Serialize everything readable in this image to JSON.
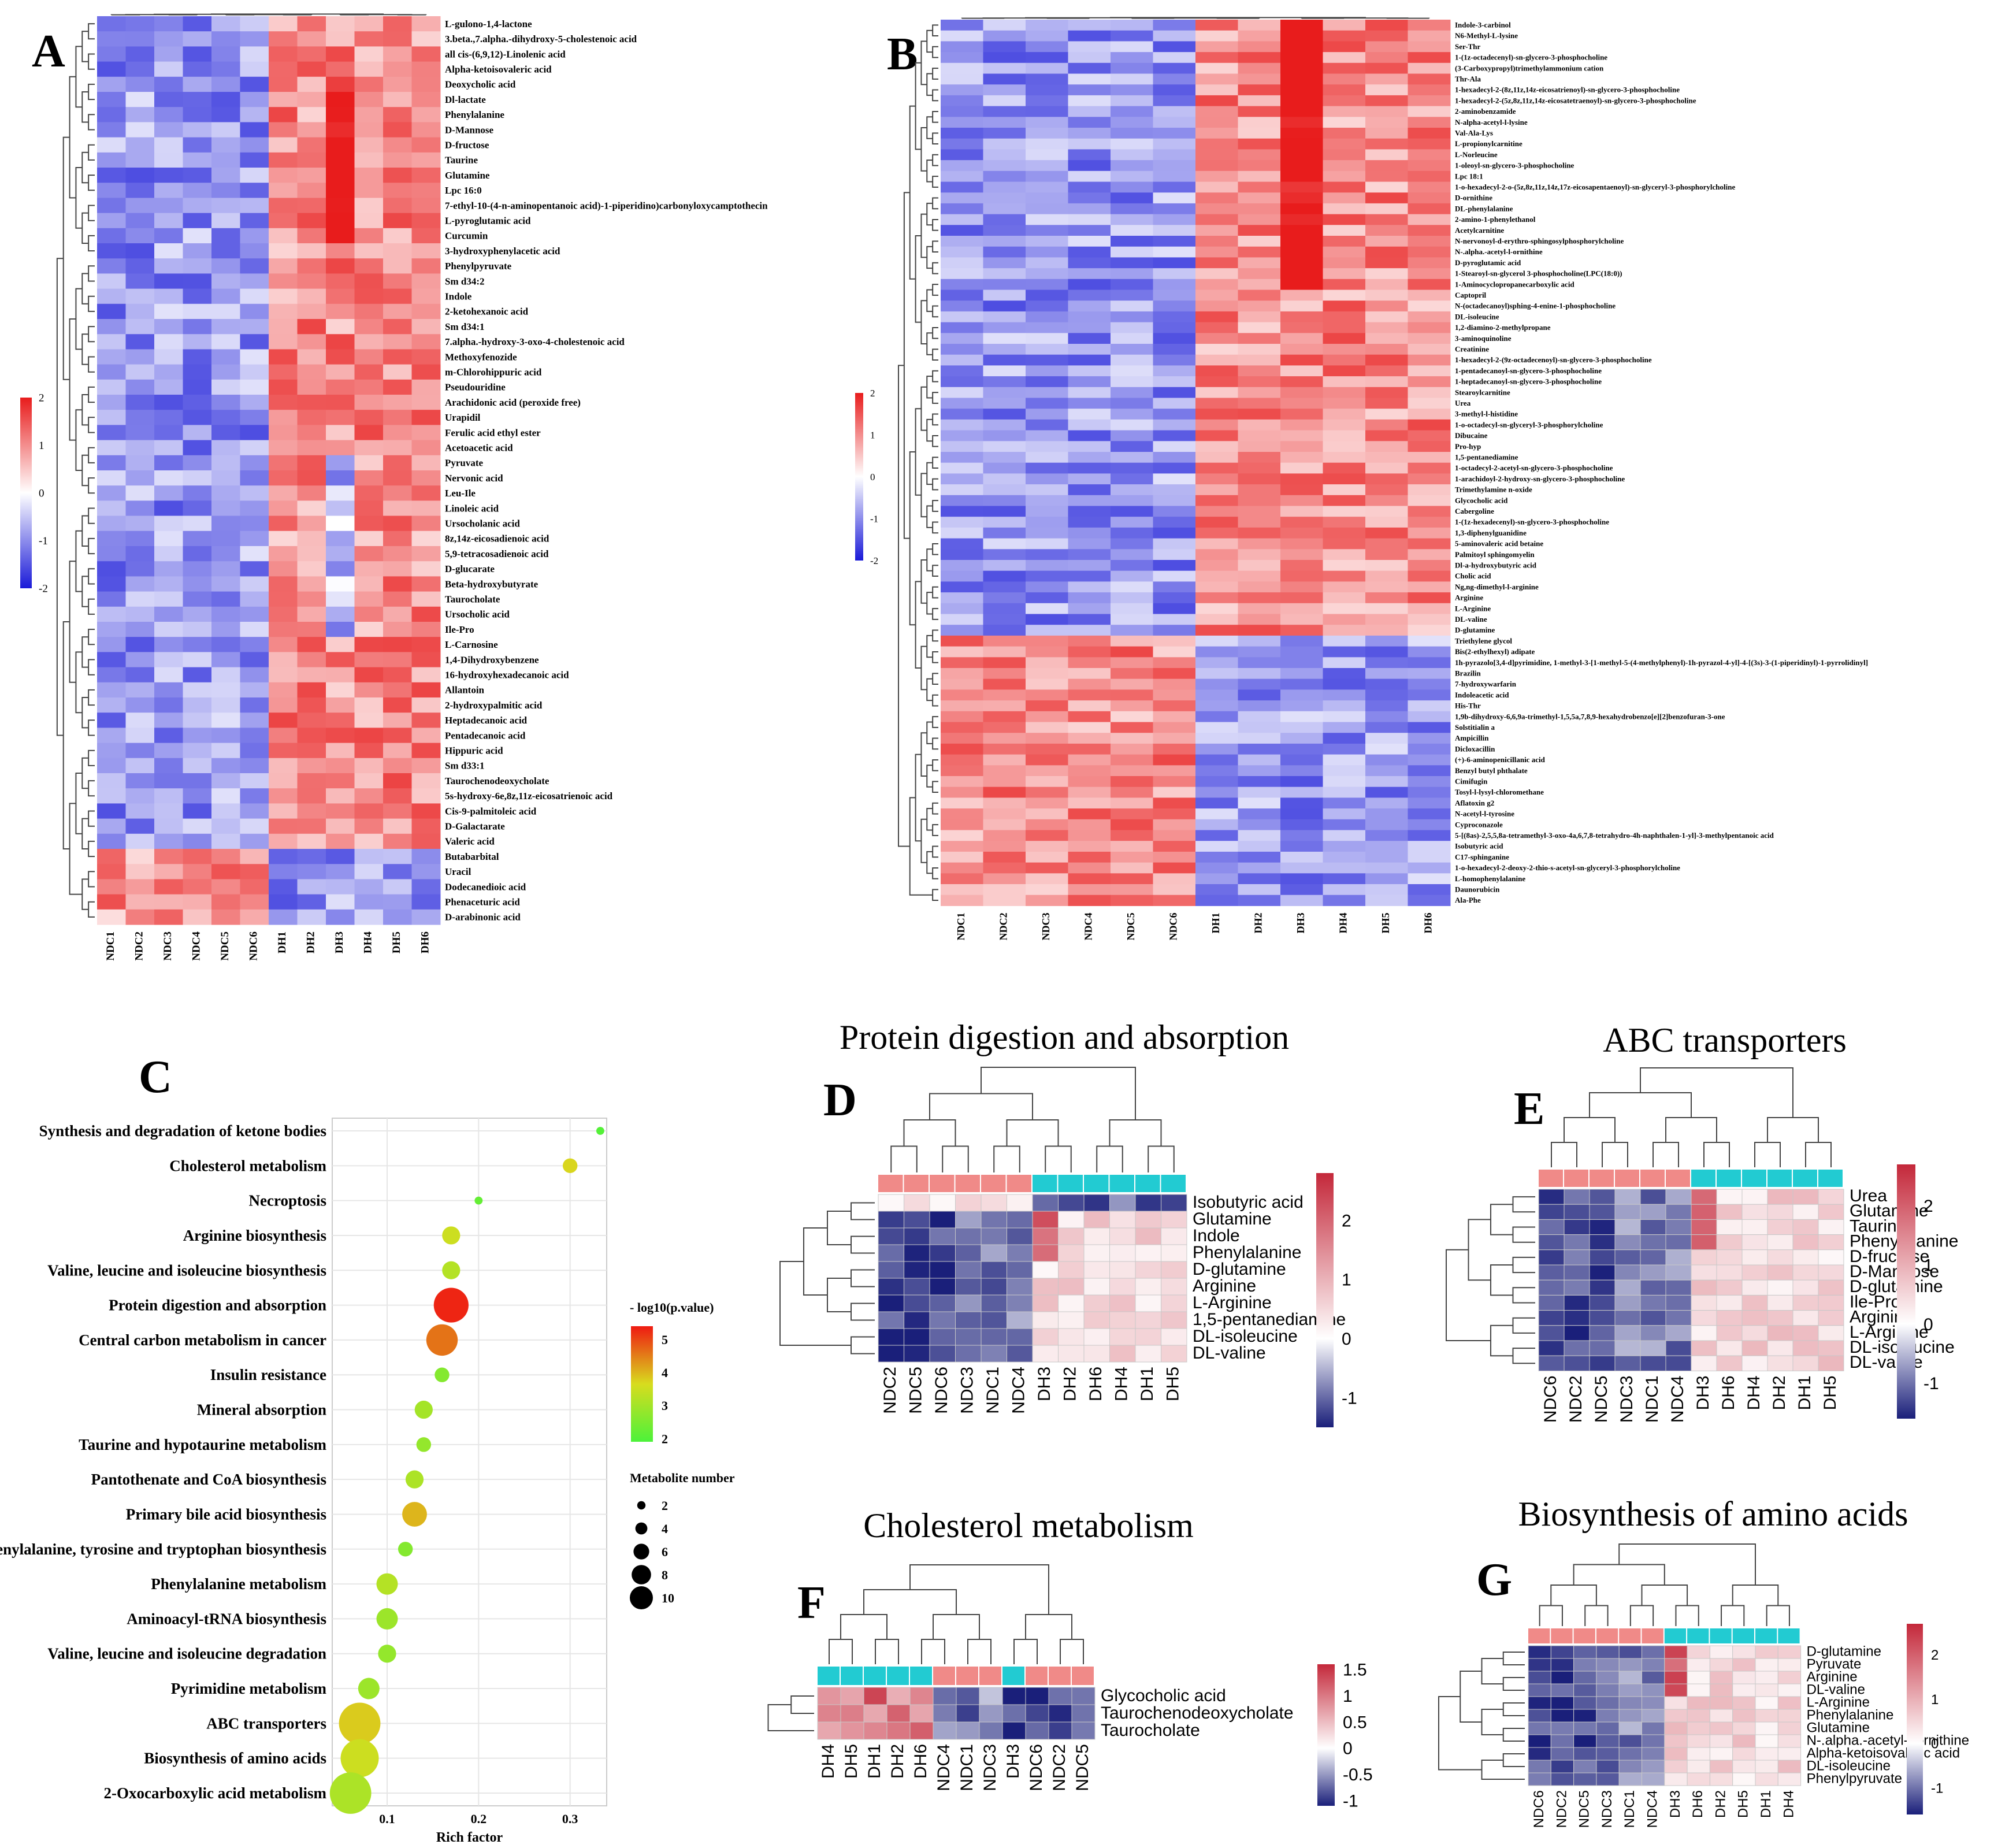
{
  "panels": {
    "A": {
      "letter": "A"
    },
    "B": {
      "letter": "B"
    },
    "C": {
      "letter": "C"
    },
    "D": {
      "letter": "D",
      "title": "Protein digestion and absorption"
    },
    "E": {
      "letter": "E",
      "title": "ABC transporters"
    },
    "F": {
      "letter": "F",
      "title": "Cholesterol metabolism"
    },
    "G": {
      "letter": "G",
      "title": "Biosynthesis of amino acids"
    }
  },
  "colors": {
    "high": "#e81c1c",
    "mid": "#ffffff",
    "low": "#1a1ad8",
    "small_low": "#1a1f7a",
    "small_high": "#c4283a",
    "group_ndc": "#f08a88",
    "group_dh": "#22cbd2",
    "grid": "#e6e6e6"
  },
  "chart_data": [
    {
      "id": "A",
      "type": "heatmap",
      "columns": [
        "NDC1",
        "NDC2",
        "NDC3",
        "NDC4",
        "NDC5",
        "NDC6",
        "DH1",
        "DH2",
        "DH3",
        "DH4",
        "DH5",
        "DH6"
      ],
      "rows": [
        "L-gulono-1,4-lactone",
        "3.beta.,7.alpha.-dihydroxy-5-cholestenoic acid",
        "all cis-(6,9,12)-Linolenic acid",
        "Alpha-ketoisovaleric acid",
        "Deoxycholic acid",
        "Dl-lactate",
        "Phenylalanine",
        "D-Mannose",
        "D-fructose",
        "Taurine",
        "Glutamine",
        "Lpc 16:0",
        "7-ethyl-10-(4-n-aminopentanoic acid)-1-piperidino)carbonyloxycamptothecin",
        "L-pyroglutamic acid",
        "Curcumin",
        "3-hydroxyphenylacetic acid",
        "Phenylpyruvate",
        "Sm d34:2",
        "Indole",
        "2-ketohexanoic acid",
        "Sm d34:1",
        "7.alpha.-hydroxy-3-oxo-4-cholestenoic acid",
        "Methoxyfenozide",
        "m-Chlorohippuric acid",
        "Pseudouridine",
        "Arachidonic acid (peroxide free)",
        "Urapidil",
        "Ferulic acid ethyl ester",
        "Acetoacetic acid",
        "Pyruvate",
        "Nervonic acid",
        "Leu-Ile",
        "Linoleic acid",
        "Ursocholanic acid",
        "8z,14z-eicosadienoic acid",
        "5,9-tetracosadienoic acid",
        "D-glucarate",
        "Beta-hydroxybutyrate",
        "Taurocholate",
        "Ursocholic acid",
        "Ile-Pro",
        "L-Carnosine",
        "1,4-Dihydroxybenzene",
        "16-hydroxyhexadecanoic acid",
        "Allantoin",
        "2-hydroxypalmitic acid",
        "Heptadecanoic acid",
        "Pentadecanoic acid",
        "Hippuric acid",
        "Sm d33:1",
        "Taurochenodeoxycholate",
        "5s-hydroxy-6e,8z,11z-eicosatrienoic acid",
        "Cis-9-palmitoleic acid",
        "D-Galactarate",
        "Valeric acid",
        "Butabarbital",
        "Uracil",
        "Dodecanedioic acid",
        "Phenaceturic acid",
        "D-arabinonic acid"
      ],
      "scale": {
        "min": -2,
        "max": 2,
        "ticks": [
          "2",
          "1",
          "0",
          "-1",
          "-2"
        ]
      }
    },
    {
      "id": "B",
      "type": "heatmap",
      "columns": [
        "NDC1",
        "NDC2",
        "NDC3",
        "NDC4",
        "NDC5",
        "NDC6",
        "DH1",
        "DH2",
        "DH3",
        "DH4",
        "DH5",
        "DH6"
      ],
      "rows": [
        "Indole-3-carbinol",
        "N6-Methyl-L-lysine",
        "Ser-Thr",
        "1-(1z-octadecenyl)-sn-glycero-3-phosphocholine",
        "(3-Carboxypropyl)trimethylammonium cation",
        "Thr-Ala",
        "1-hexadecyl-2-(8z,11z,14z-eicosatrienoyl)-sn-glycero-3-phosphocholine",
        "1-hexadecyl-2-(5z,8z,11z,14z-eicosatetraenoyl)-sn-glycero-3-phosphocholine",
        "2-aminobenzamide",
        "N-alpha-acetyl-l-lysine",
        "Val-Ala-Lys",
        "L-propionylcarnitine",
        "L-Norleucine",
        "1-oleoyl-sn-glycero-3-phosphocholine",
        "Lpc 18:1",
        "1-o-hexadecyl-2-o-(5z,8z,11z,14z,17z-eicosapentaenoyl)-sn-glyceryl-3-phosphorylcholine",
        "D-ornithine",
        "DL-phenylalanine",
        "2-amino-1-phenylethanol",
        "Acetylcarnitine",
        "N-nervonoyl-d-erythro-sphingosylphosphorylcholine",
        "N-.alpha.-acetyl-l-ornithine",
        "D-pyroglutamic acid",
        "1-Stearoyl-sn-glycerol 3-phosphocholine(LPC(18:0))",
        "1-Aminocyclopropanecarboxylic acid",
        "Captopril",
        "N-(octadecanoyl)sphing-4-enine-1-phosphocholine",
        "DL-isoleucine",
        "1,2-diamino-2-methylpropane",
        "3-aminoquinoline",
        "Creatinine",
        "1-hexadecyl-2-(9z-octadecenoyl)-sn-glycero-3-phosphocholine",
        "1-pentadecanoyl-sn-glycero-3-phosphocholine",
        "1-heptadecanoyl-sn-glycero-3-phosphocholine",
        "Stearoylcarnitine",
        "Urea",
        "3-methyl-l-histidine",
        "1-o-octadecyl-sn-glyceryl-3-phosphorylcholine",
        "Dibucaine",
        "Pro-hyp",
        "1,5-pentanediamine",
        "1-octadecyl-2-acetyl-sn-glycero-3-phosphocholine",
        "1-arachidoyl-2-hydroxy-sn-glycero-3-phosphocholine",
        "Trimethylamine n-oxide",
        "Glycocholic acid",
        "Cabergoline",
        "1-(1z-hexadecenyl)-sn-glycero-3-phosphocholine",
        "1,3-diphenylguanidine",
        "5-aminovaleric acid betaine",
        "Palmitoyl sphingomyelin",
        "Dl-a-hydroxybutyric acid",
        "Cholic acid",
        "Ng,ng-dimethyl-l-arginine",
        "Arginine",
        "L-Arginine",
        "DL-valine",
        "D-glutamine",
        "Triethylene glycol",
        "Bis(2-ethylhexyl) adipate",
        "1h-pyrazolo[3,4-d]pyrimidine, 1-methyl-3-[1-methyl-5-(4-methylphenyl)-1h-pyrazol-4-yl]-4-[(3s)-3-(1-piperidinyl)-1-pyrrolidinyl]",
        "Brazilin",
        "7-hydroxywarfarin",
        "Indoleacetic acid",
        "His-Thr",
        "1,9b-dihydroxy-6,6,9a-trimethyl-1,5,5a,7,8,9-hexahydrobenzo[e][2]benzofuran-3-one",
        "Solstitialin a",
        "Ampicillin",
        "Dicloxacillin",
        "(+)-6-aminopenicillanic acid",
        "Benzyl butyl phthalate",
        "Cimifugin",
        "Tosyl-l-lysyl-chloromethane",
        "Aflatoxin g2",
        "N-acetyl-l-tyrosine",
        "Cyproconazole",
        "5-[(8as)-2,5,5,8a-tetramethyl-3-oxo-4a,6,7,8-tetrahydro-4h-naphthalen-1-yl]-3-methylpentanoic acid",
        "Isobutyric acid",
        "C17-sphinganine",
        "1-o-hexadecyl-2-deoxy-2-thio-s-acetyl-sn-glyceryl-3-phosphorylcholine",
        "L-homophenylalanine",
        "Daunorubicin",
        "Ala-Phe"
      ],
      "scale": {
        "min": -2,
        "max": 2,
        "ticks": [
          "2",
          "1",
          "0",
          "-1",
          "-2"
        ]
      }
    },
    {
      "id": "C",
      "type": "scatter",
      "xlabel": "Rich factor",
      "xlim": [
        0.04,
        0.34
      ],
      "xticks": [
        "0.1",
        "0.2",
        "0.3"
      ],
      "color_legend_title": "- log10(p.value)",
      "color_ticks": [
        "5",
        "4",
        "3",
        "2"
      ],
      "size_legend_title": "Metabolite number",
      "size_ticks": [
        "2",
        "4",
        "6",
        "8",
        "10"
      ],
      "pathways": [
        {
          "name": "Synthesis and degradation of ketone bodies",
          "rich": 0.333,
          "logp": 2.1,
          "count": 1
        },
        {
          "name": "Cholesterol metabolism",
          "rich": 0.3,
          "logp": 3.8,
          "count": 3
        },
        {
          "name": "Necroptosis",
          "rich": 0.2,
          "logp": 2.3,
          "count": 1
        },
        {
          "name": "Arginine biosynthesis",
          "rich": 0.17,
          "logp": 3.6,
          "count": 4
        },
        {
          "name": "Valine, leucine and isoleucine biosynthesis",
          "rich": 0.17,
          "logp": 3.3,
          "count": 4
        },
        {
          "name": "Protein digestion and absorption",
          "rich": 0.17,
          "logp": 5.4,
          "count": 9
        },
        {
          "name": "Central carbon metabolism in cancer",
          "rich": 0.16,
          "logp": 4.7,
          "count": 8
        },
        {
          "name": "Insulin resistance",
          "rich": 0.16,
          "logp": 2.7,
          "count": 3
        },
        {
          "name": "Mineral absorption",
          "rich": 0.14,
          "logp": 3.1,
          "count": 4
        },
        {
          "name": "Taurine and hypotaurine metabolism",
          "rich": 0.14,
          "logp": 2.9,
          "count": 3
        },
        {
          "name": "Pantothenate and CoA biosynthesis",
          "rich": 0.13,
          "logp": 3.2,
          "count": 4
        },
        {
          "name": "Primary bile acid biosynthesis",
          "rich": 0.13,
          "logp": 4.1,
          "count": 6
        },
        {
          "name": "Phenylalanine, tyrosine and tryptophan biosynthesis",
          "rich": 0.12,
          "logp": 2.7,
          "count": 3
        },
        {
          "name": "Phenylalanine metabolism",
          "rich": 0.1,
          "logp": 3.3,
          "count": 5
        },
        {
          "name": "Aminoacyl-tRNA biosynthesis",
          "rich": 0.1,
          "logp": 3.0,
          "count": 5
        },
        {
          "name": "Valine, leucine and isoleucine degradation",
          "rich": 0.1,
          "logp": 2.9,
          "count": 4
        },
        {
          "name": "Pyrimidine metabolism",
          "rich": 0.08,
          "logp": 3.0,
          "count": 5
        },
        {
          "name": "ABC transporters",
          "rich": 0.07,
          "logp": 3.9,
          "count": 11
        },
        {
          "name": "Biosynthesis of amino acids",
          "rich": 0.07,
          "logp": 3.6,
          "count": 10
        },
        {
          "name": "2-Oxocarboxylic acid metabolism",
          "rich": 0.06,
          "logp": 3.2,
          "count": 11
        }
      ]
    },
    {
      "id": "D",
      "type": "heatmap",
      "title": "Protein digestion and absorption",
      "columns": [
        "NDC2",
        "NDC5",
        "NDC6",
        "NDC3",
        "NDC1",
        "NDC4",
        "DH3",
        "DH2",
        "DH6",
        "DH4",
        "DH1",
        "DH5"
      ],
      "rows": [
        "Isobutyric acid",
        "Glutamine",
        "Indole",
        "Phenylalanine",
        "D-glutamine",
        "Arginine",
        "L-Arginine",
        "1,5-pentanediamine",
        "DL-isoleucine",
        "DL-valine"
      ],
      "scale": {
        "min": -1.5,
        "max": 2.8,
        "ticks": [
          "2",
          "1",
          "0",
          "-1"
        ]
      }
    },
    {
      "id": "E",
      "type": "heatmap",
      "title": "ABC transporters",
      "columns": [
        "NDC6",
        "NDC2",
        "NDC5",
        "NDC3",
        "NDC1",
        "NDC4",
        "DH3",
        "DH6",
        "DH4",
        "DH2",
        "DH1",
        "DH5"
      ],
      "rows": [
        "Urea",
        "Glutamine",
        "Taurine",
        "Phenylalanine",
        "D-fructose",
        "D-Mannose",
        "D-glutamine",
        "Ile-Pro",
        "Arginine",
        "L-Arginine",
        "DL-isoleucine",
        "DL-valine"
      ],
      "scale": {
        "min": -1.6,
        "max": 2.7,
        "ticks": [
          "2",
          "1",
          "0",
          "-1"
        ]
      }
    },
    {
      "id": "F",
      "type": "heatmap",
      "title": "Cholesterol metabolism",
      "columns": [
        "DH4",
        "DH5",
        "DH1",
        "DH2",
        "DH6",
        "NDC4",
        "NDC1",
        "NDC3",
        "DH3",
        "NDC6",
        "NDC2",
        "NDC5"
      ],
      "rows": [
        "Glycocholic acid",
        "Taurochenodeoxycholate",
        "Taurocholate"
      ],
      "scale": {
        "min": -1.1,
        "max": 1.6,
        "ticks": [
          "1.5",
          "1",
          "0.5",
          "0",
          "-0.5",
          "-1"
        ]
      }
    },
    {
      "id": "G",
      "type": "heatmap",
      "title": "Biosynthesis of amino acids",
      "columns": [
        "NDC6",
        "NDC2",
        "NDC5",
        "NDC3",
        "NDC1",
        "NDC4",
        "DH3",
        "DH6",
        "DH2",
        "DH5",
        "DH1",
        "DH4"
      ],
      "rows": [
        "D-glutamine",
        "Pyruvate",
        "Arginine",
        "DL-valine",
        "L-Arginine",
        "Phenylalanine",
        "Glutamine",
        "N-.alpha.-acetyl-l-ornithine",
        "Alpha-ketoisovaleric acid",
        "DL-isoleucine",
        "Phenylpyruvate"
      ],
      "scale": {
        "min": -1.6,
        "max": 2.7,
        "ticks": [
          "2",
          "1",
          "0",
          "-1"
        ]
      }
    }
  ]
}
